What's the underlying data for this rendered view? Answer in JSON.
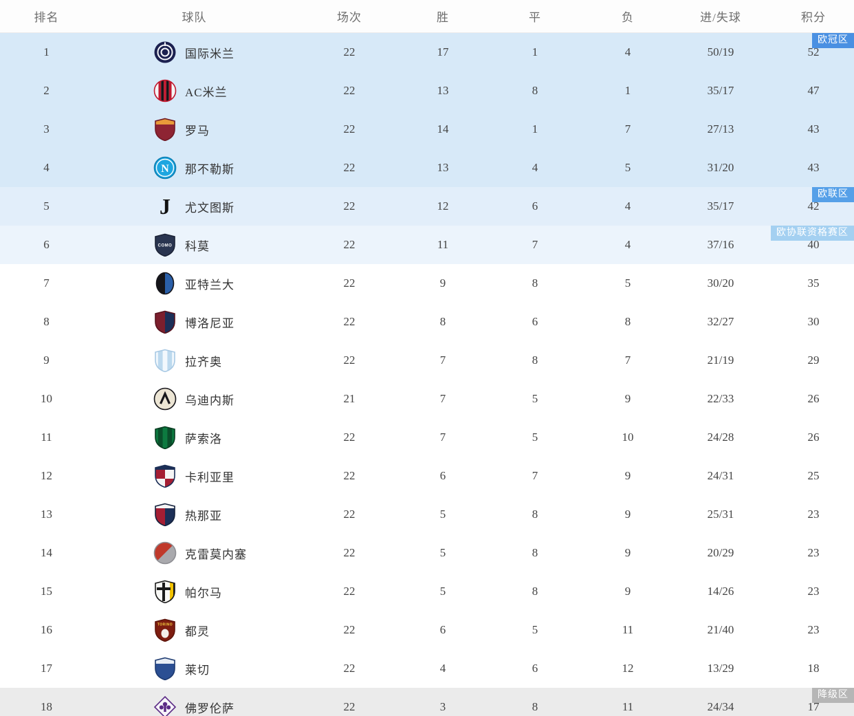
{
  "table": {
    "headers": [
      {
        "label": "排名"
      },
      {
        "label": "球队"
      },
      {
        "label": "场次"
      },
      {
        "label": "胜"
      },
      {
        "label": "平"
      },
      {
        "label": "负"
      },
      {
        "label": "进/失球"
      },
      {
        "label": "积分"
      }
    ],
    "zone_colors": {
      "champions": "#4a90e2",
      "europa": "#56a0e8",
      "conference": "#a4d0f1",
      "relegation": "#b6b6b6"
    },
    "rows": [
      {
        "rank": "1",
        "team": "国际米兰",
        "played": "22",
        "win": "17",
        "draw": "1",
        "loss": "4",
        "goals": "50/19",
        "points": "52",
        "bg": "#d7e9f8",
        "zone": {
          "label": "欧冠区",
          "bg": "#4a90e2",
          "color": "#ffffff"
        },
        "logo": {
          "shape": "circle",
          "pattern": "rings",
          "colors": [
            "#1c2150",
            "#f5f6fa"
          ]
        }
      },
      {
        "rank": "2",
        "team": "AC米兰",
        "played": "22",
        "win": "13",
        "draw": "8",
        "loss": "1",
        "goals": "35/17",
        "points": "47",
        "bg": "#d7e9f8",
        "logo": {
          "shape": "circle",
          "pattern": "vstripes",
          "colors": [
            "#f5f5f5",
            "#c0182e",
            "#16161a"
          ],
          "outline": "#c0182e"
        }
      },
      {
        "rank": "3",
        "team": "罗马",
        "played": "22",
        "win": "14",
        "draw": "1",
        "loss": "7",
        "goals": "27/13",
        "points": "43",
        "bg": "#d7e9f8",
        "logo": {
          "shape": "shield",
          "pattern": "chief",
          "colors": [
            "#8e2433",
            "#e89b3a"
          ],
          "outline": "#6f1a26"
        }
      },
      {
        "rank": "4",
        "team": "那不勒斯",
        "played": "22",
        "win": "13",
        "draw": "4",
        "loss": "5",
        "goals": "31/20",
        "points": "43",
        "bg": "#d7e9f8",
        "logo": {
          "shape": "circle",
          "pattern": "letter",
          "colors": [
            "#1da6e0",
            "#ffffff"
          ],
          "label": "N",
          "outline": "#0d7fb3"
        }
      },
      {
        "rank": "5",
        "team": "尤文图斯",
        "played": "22",
        "win": "12",
        "draw": "6",
        "loss": "4",
        "goals": "35/17",
        "points": "42",
        "bg": "#e2eefa",
        "zone": {
          "label": "欧联区",
          "bg": "#56a0e8",
          "color": "#ffffff"
        },
        "logo": {
          "shape": "glyph",
          "pattern": "glyph",
          "colors": [
            "#111111"
          ],
          "label": "J"
        }
      },
      {
        "rank": "6",
        "team": "科莫",
        "played": "22",
        "win": "11",
        "draw": "7",
        "loss": "4",
        "goals": "37/16",
        "points": "40",
        "bg": "#ecf4fc",
        "zone": {
          "label": "欧协联资格赛区",
          "bg": "#a4d0f1",
          "color": "#ffffff"
        },
        "logo": {
          "shape": "shield",
          "pattern": "label",
          "colors": [
            "#2a3550",
            "#ffffff"
          ],
          "label": "COMO",
          "outline": "#1c2336"
        }
      },
      {
        "rank": "7",
        "team": "亚特兰大",
        "played": "22",
        "win": "9",
        "draw": "8",
        "loss": "5",
        "goals": "30/20",
        "points": "35",
        "bg": "#ffffff",
        "logo": {
          "shape": "oval",
          "pattern": "halves",
          "colors": [
            "#15151a",
            "#2a5fa8"
          ],
          "outline": "#15151a"
        }
      },
      {
        "rank": "8",
        "team": "博洛尼亚",
        "played": "22",
        "win": "8",
        "draw": "6",
        "loss": "8",
        "goals": "32/27",
        "points": "30",
        "bg": "#ffffff",
        "logo": {
          "shape": "shield",
          "pattern": "halves",
          "colors": [
            "#7c1f2d",
            "#1c2f57"
          ],
          "outline": "#58131e"
        }
      },
      {
        "rank": "9",
        "team": "拉齐奥",
        "played": "22",
        "win": "7",
        "draw": "8",
        "loss": "7",
        "goals": "21/19",
        "points": "29",
        "bg": "#ffffff",
        "logo": {
          "shape": "shield",
          "pattern": "stripes2",
          "colors": [
            "#f2f8fd",
            "#bcd9ee"
          ],
          "outline": "#a8c9e4"
        }
      },
      {
        "rank": "10",
        "team": "乌迪内斯",
        "played": "21",
        "win": "7",
        "draw": "5",
        "loss": "9",
        "goals": "22/33",
        "points": "26",
        "bg": "#ffffff",
        "logo": {
          "shape": "circle",
          "pattern": "chevron",
          "colors": [
            "#ece5d4",
            "#17161b"
          ],
          "outline": "#17161b"
        }
      },
      {
        "rank": "11",
        "team": "萨索洛",
        "played": "22",
        "win": "7",
        "draw": "5",
        "loss": "10",
        "goals": "24/28",
        "points": "26",
        "bg": "#ffffff",
        "logo": {
          "shape": "shield",
          "pattern": "stripes2",
          "colors": [
            "#0d7a40",
            "#0a4f2b"
          ],
          "outline": "#083d21"
        }
      },
      {
        "rank": "12",
        "team": "卡利亚里",
        "played": "22",
        "win": "6",
        "draw": "7",
        "loss": "9",
        "goals": "24/31",
        "points": "25",
        "bg": "#ffffff",
        "logo": {
          "shape": "shield",
          "pattern": "quarters",
          "colors": [
            "#a51e33",
            "#f5f5f5",
            "#1c2f57"
          ],
          "outline": "#1c2f57"
        }
      },
      {
        "rank": "13",
        "team": "热那亚",
        "played": "22",
        "win": "5",
        "draw": "8",
        "loss": "9",
        "goals": "25/31",
        "points": "23",
        "bg": "#ffffff",
        "logo": {
          "shape": "shield",
          "pattern": "halves-chief",
          "colors": [
            "#a51e33",
            "#1c2f57",
            "#f5f5f5"
          ],
          "outline": "#14213c"
        }
      },
      {
        "rank": "14",
        "team": "克雷莫内塞",
        "played": "22",
        "win": "5",
        "draw": "8",
        "loss": "9",
        "goals": "20/29",
        "points": "23",
        "bg": "#ffffff",
        "logo": {
          "shape": "circle",
          "pattern": "halves-diag",
          "colors": [
            "#c0392b",
            "#a9a9ad"
          ],
          "outline": "#8e8e93"
        }
      },
      {
        "rank": "15",
        "team": "帕尔马",
        "played": "22",
        "win": "5",
        "draw": "8",
        "loss": "9",
        "goals": "14/26",
        "points": "23",
        "bg": "#ffffff",
        "logo": {
          "shape": "shield",
          "pattern": "parma",
          "colors": [
            "#f8f8f5",
            "#1a1a1a",
            "#f2c200"
          ],
          "outline": "#1a1a1a"
        }
      },
      {
        "rank": "16",
        "team": "都灵",
        "played": "22",
        "win": "6",
        "draw": "5",
        "loss": "11",
        "goals": "21/40",
        "points": "23",
        "bg": "#ffffff",
        "logo": {
          "shape": "shield",
          "pattern": "label",
          "colors": [
            "#7e1d10",
            "#f4d03f"
          ],
          "label": "TORINO",
          "bull": true,
          "outline": "#5e150b"
        }
      },
      {
        "rank": "17",
        "team": "莱切",
        "played": "22",
        "win": "4",
        "draw": "6",
        "loss": "12",
        "goals": "13/29",
        "points": "18",
        "bg": "#ffffff",
        "logo": {
          "shape": "shield",
          "pattern": "chief",
          "colors": [
            "#2b4f93",
            "#e8eef6"
          ],
          "outline": "#1d3a70"
        }
      },
      {
        "rank": "18",
        "team": "佛罗伦萨",
        "played": "22",
        "win": "3",
        "draw": "8",
        "loss": "11",
        "goals": "24/34",
        "points": "17",
        "bg": "#ebebeb",
        "zone": {
          "label": "降级区",
          "bg": "#b6b6b6",
          "color": "#ffffff"
        },
        "logo": {
          "shape": "diamond",
          "pattern": "fleur",
          "colors": [
            "#f7f4fa",
            "#5b2a86"
          ],
          "outline": "#5b2a86"
        }
      }
    ]
  }
}
